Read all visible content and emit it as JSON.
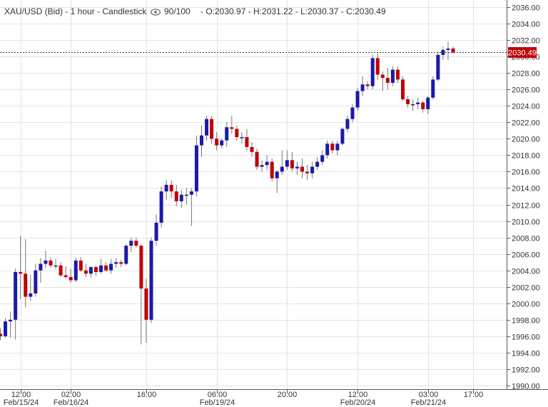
{
  "header": {
    "title": "XAU/USD (Bid) - 1 hour - Candlestick",
    "eye_icon": "eye-icon",
    "view_count": "90/100",
    "ohlc": "- O:2030.97 - H:2031.22 - L:2030.37 - C:2030.49"
  },
  "colors": {
    "up": "#1a1aaa",
    "down": "#c00000",
    "badge": "#c00000",
    "grid": "#e4e4e4"
  },
  "chart_data": {
    "type": "candlestick",
    "title": "XAU/USD (Bid) - 1 hour - Candlestick",
    "ylim": [
      1990,
      2036
    ],
    "y_ticks": [
      1990,
      1992,
      1994,
      1996,
      1998,
      2000,
      2002,
      2004,
      2006,
      2008,
      2010,
      2012,
      2014,
      2016,
      2018,
      2020,
      2022,
      2024,
      2026,
      2028,
      2030,
      2032,
      2034,
      2036
    ],
    "y_tick_labels": [
      "1990.00",
      "1992.00",
      "1994.00",
      "1996.00",
      "1998.00",
      "2000.00",
      "2002.00",
      "2004.00",
      "2006.00",
      "2008.00",
      "2010.00",
      "2012.00",
      "2014.00",
      "2016.00",
      "2018.00",
      "2020.00",
      "2022.00",
      "2024.00",
      "2026.00",
      "2028.00",
      "2030.00",
      "2032.00",
      "2034.00",
      "2036.00"
    ],
    "x_ticks": [
      {
        "index": 4,
        "time": "12:00",
        "date": "Feb/15/24"
      },
      {
        "index": 14,
        "time": "02:00",
        "date": "Feb/16/24"
      },
      {
        "index": 29,
        "time": "16:00",
        "date": ""
      },
      {
        "index": 43,
        "time": "06:00",
        "date": "Feb/19/24"
      },
      {
        "index": 57,
        "time": "20:00",
        "date": ""
      },
      {
        "index": 71,
        "time": "12:00",
        "date": "Feb/20/24"
      },
      {
        "index": 85,
        "time": "03:00",
        "date": "Feb/21/24"
      },
      {
        "index": 94,
        "time": "17:00",
        "date": ""
      }
    ],
    "last_price": 2030.49,
    "last_price_label": "2030.49",
    "candles": [
      {
        "o": 1996.3,
        "h": 1997.0,
        "l": 1995.5,
        "c": 1996.0
      },
      {
        "o": 1996.0,
        "h": 1998.2,
        "l": 1995.8,
        "c": 1997.8
      },
      {
        "o": 1997.8,
        "h": 1999.0,
        "l": 1995.8,
        "c": 1998.0
      },
      {
        "o": 1998.0,
        "h": 2004.2,
        "l": 1995.6,
        "c": 2003.8
      },
      {
        "o": 2003.8,
        "h": 2008.2,
        "l": 2000.5,
        "c": 2003.6
      },
      {
        "o": 2003.6,
        "h": 2007.8,
        "l": 1999.5,
        "c": 2000.8
      },
      {
        "o": 2000.8,
        "h": 2003.5,
        "l": 2000.3,
        "c": 2001.2
      },
      {
        "o": 2001.2,
        "h": 2004.8,
        "l": 2000.8,
        "c": 2004.0
      },
      {
        "o": 2004.0,
        "h": 2005.5,
        "l": 2002.5,
        "c": 2004.8
      },
      {
        "o": 2004.8,
        "h": 2006.4,
        "l": 2004.3,
        "c": 2005.2
      },
      {
        "o": 2005.2,
        "h": 2005.6,
        "l": 2004.3,
        "c": 2004.6
      },
      {
        "o": 2004.6,
        "h": 2005.4,
        "l": 2004.1,
        "c": 2004.6
      },
      {
        "o": 2004.6,
        "h": 2005.0,
        "l": 2003.2,
        "c": 2003.4
      },
      {
        "o": 2003.4,
        "h": 2004.5,
        "l": 2003.0,
        "c": 2003.2
      },
      {
        "o": 2003.2,
        "h": 2004.2,
        "l": 2002.5,
        "c": 2002.8
      },
      {
        "o": 2002.8,
        "h": 2005.6,
        "l": 2002.6,
        "c": 2005.2
      },
      {
        "o": 2005.2,
        "h": 2005.6,
        "l": 2003.8,
        "c": 2004.0
      },
      {
        "o": 2004.0,
        "h": 2004.8,
        "l": 2003.2,
        "c": 2003.6
      },
      {
        "o": 2003.6,
        "h": 2004.5,
        "l": 2003.1,
        "c": 2004.4
      },
      {
        "o": 2004.4,
        "h": 2004.6,
        "l": 2003.3,
        "c": 2003.8
      },
      {
        "o": 2003.8,
        "h": 2005.4,
        "l": 2003.6,
        "c": 2004.6
      },
      {
        "o": 2004.6,
        "h": 2005.0,
        "l": 2003.8,
        "c": 2004.0
      },
      {
        "o": 2004.0,
        "h": 2005.4,
        "l": 2003.6,
        "c": 2004.8
      },
      {
        "o": 2004.8,
        "h": 2005.5,
        "l": 2004.3,
        "c": 2005.0
      },
      {
        "o": 2005.0,
        "h": 2005.3,
        "l": 2004.4,
        "c": 2004.8
      },
      {
        "o": 2004.8,
        "h": 2007.2,
        "l": 2004.6,
        "c": 2007.0
      },
      {
        "o": 2007.0,
        "h": 2008.0,
        "l": 2006.2,
        "c": 2007.6
      },
      {
        "o": 2007.6,
        "h": 2008.0,
        "l": 2006.8,
        "c": 2007.0
      },
      {
        "o": 2007.0,
        "h": 2007.2,
        "l": 1995.0,
        "c": 2001.8
      },
      {
        "o": 2001.8,
        "h": 2003.0,
        "l": 1995.2,
        "c": 1998.0
      },
      {
        "o": 1998.0,
        "h": 2008.0,
        "l": 1997.6,
        "c": 2007.6
      },
      {
        "o": 2007.6,
        "h": 2010.8,
        "l": 2007.0,
        "c": 2009.8
      },
      {
        "o": 2009.8,
        "h": 2014.2,
        "l": 2009.2,
        "c": 2013.6
      },
      {
        "o": 2013.6,
        "h": 2015.0,
        "l": 2012.6,
        "c": 2014.4
      },
      {
        "o": 2014.4,
        "h": 2015.0,
        "l": 2012.8,
        "c": 2013.6
      },
      {
        "o": 2013.6,
        "h": 2014.4,
        "l": 2011.8,
        "c": 2012.4
      },
      {
        "o": 2012.4,
        "h": 2013.8,
        "l": 2011.6,
        "c": 2013.2
      },
      {
        "o": 2013.2,
        "h": 2014.0,
        "l": 2012.0,
        "c": 2013.2
      },
      {
        "o": 2013.2,
        "h": 2014.0,
        "l": 2009.4,
        "c": 2013.6
      },
      {
        "o": 2013.6,
        "h": 2020.4,
        "l": 2013.0,
        "c": 2019.2
      },
      {
        "o": 2019.2,
        "h": 2021.6,
        "l": 2017.8,
        "c": 2020.4
      },
      {
        "o": 2020.4,
        "h": 2022.8,
        "l": 2019.8,
        "c": 2022.4
      },
      {
        "o": 2022.4,
        "h": 2022.8,
        "l": 2019.4,
        "c": 2020.0
      },
      {
        "o": 2020.0,
        "h": 2020.8,
        "l": 2018.6,
        "c": 2019.2
      },
      {
        "o": 2019.2,
        "h": 2020.0,
        "l": 2018.8,
        "c": 2019.8
      },
      {
        "o": 2019.8,
        "h": 2022.0,
        "l": 2019.0,
        "c": 2021.4
      },
      {
        "o": 2021.4,
        "h": 2022.8,
        "l": 2020.6,
        "c": 2021.2
      },
      {
        "o": 2021.2,
        "h": 2021.6,
        "l": 2019.8,
        "c": 2020.2
      },
      {
        "o": 2020.2,
        "h": 2020.8,
        "l": 2019.4,
        "c": 2020.2
      },
      {
        "o": 2020.2,
        "h": 2021.2,
        "l": 2018.6,
        "c": 2019.0
      },
      {
        "o": 2019.0,
        "h": 2019.6,
        "l": 2017.8,
        "c": 2018.4
      },
      {
        "o": 2018.4,
        "h": 2018.8,
        "l": 2016.2,
        "c": 2016.6
      },
      {
        "o": 2016.6,
        "h": 2017.4,
        "l": 2016.0,
        "c": 2016.8
      },
      {
        "o": 2016.8,
        "h": 2018.0,
        "l": 2016.2,
        "c": 2017.2
      },
      {
        "o": 2017.2,
        "h": 2017.6,
        "l": 2014.8,
        "c": 2015.2
      },
      {
        "o": 2015.2,
        "h": 2016.2,
        "l": 2013.4,
        "c": 2016.0
      },
      {
        "o": 2016.0,
        "h": 2018.6,
        "l": 2015.6,
        "c": 2016.6
      },
      {
        "o": 2016.6,
        "h": 2018.6,
        "l": 2016.2,
        "c": 2017.4
      },
      {
        "o": 2017.4,
        "h": 2018.4,
        "l": 2016.0,
        "c": 2016.4
      },
      {
        "o": 2016.4,
        "h": 2017.2,
        "l": 2015.6,
        "c": 2016.6
      },
      {
        "o": 2016.6,
        "h": 2017.6,
        "l": 2015.2,
        "c": 2016.0
      },
      {
        "o": 2016.0,
        "h": 2016.8,
        "l": 2015.0,
        "c": 2015.8
      },
      {
        "o": 2015.8,
        "h": 2017.2,
        "l": 2015.2,
        "c": 2016.6
      },
      {
        "o": 2016.6,
        "h": 2017.8,
        "l": 2016.2,
        "c": 2017.2
      },
      {
        "o": 2017.2,
        "h": 2018.6,
        "l": 2016.8,
        "c": 2018.0
      },
      {
        "o": 2018.0,
        "h": 2019.8,
        "l": 2017.6,
        "c": 2019.4
      },
      {
        "o": 2019.4,
        "h": 2019.8,
        "l": 2018.2,
        "c": 2018.6
      },
      {
        "o": 2018.6,
        "h": 2019.8,
        "l": 2018.0,
        "c": 2019.4
      },
      {
        "o": 2019.4,
        "h": 2021.4,
        "l": 2019.2,
        "c": 2021.2
      },
      {
        "o": 2021.2,
        "h": 2022.8,
        "l": 2020.8,
        "c": 2022.4
      },
      {
        "o": 2022.4,
        "h": 2024.2,
        "l": 2022.0,
        "c": 2023.8
      },
      {
        "o": 2023.8,
        "h": 2026.2,
        "l": 2023.4,
        "c": 2025.8
      },
      {
        "o": 2025.8,
        "h": 2027.6,
        "l": 2025.2,
        "c": 2026.6
      },
      {
        "o": 2026.6,
        "h": 2027.0,
        "l": 2026.0,
        "c": 2026.4
      },
      {
        "o": 2026.4,
        "h": 2030.2,
        "l": 2026.0,
        "c": 2029.8
      },
      {
        "o": 2029.8,
        "h": 2030.4,
        "l": 2027.2,
        "c": 2027.8
      },
      {
        "o": 2027.8,
        "h": 2028.2,
        "l": 2025.8,
        "c": 2027.4
      },
      {
        "o": 2027.4,
        "h": 2028.6,
        "l": 2026.0,
        "c": 2026.8
      },
      {
        "o": 2026.8,
        "h": 2028.8,
        "l": 2026.4,
        "c": 2028.4
      },
      {
        "o": 2028.4,
        "h": 2028.8,
        "l": 2026.8,
        "c": 2027.2
      },
      {
        "o": 2027.2,
        "h": 2027.6,
        "l": 2024.6,
        "c": 2024.8
      },
      {
        "o": 2024.8,
        "h": 2025.2,
        "l": 2023.8,
        "c": 2024.2
      },
      {
        "o": 2024.2,
        "h": 2024.8,
        "l": 2023.4,
        "c": 2024.2
      },
      {
        "o": 2024.2,
        "h": 2025.0,
        "l": 2023.6,
        "c": 2024.4
      },
      {
        "o": 2024.4,
        "h": 2024.6,
        "l": 2023.2,
        "c": 2023.6
      },
      {
        "o": 2023.6,
        "h": 2025.2,
        "l": 2023.0,
        "c": 2025.0
      },
      {
        "o": 2025.0,
        "h": 2027.6,
        "l": 2024.8,
        "c": 2027.2
      },
      {
        "o": 2027.2,
        "h": 2030.6,
        "l": 2027.0,
        "c": 2030.2
      },
      {
        "o": 2030.2,
        "h": 2031.2,
        "l": 2029.6,
        "c": 2030.8
      },
      {
        "o": 2030.8,
        "h": 2031.8,
        "l": 2029.6,
        "c": 2030.97
      },
      {
        "o": 2030.97,
        "h": 2031.22,
        "l": 2030.37,
        "c": 2030.49
      }
    ]
  }
}
